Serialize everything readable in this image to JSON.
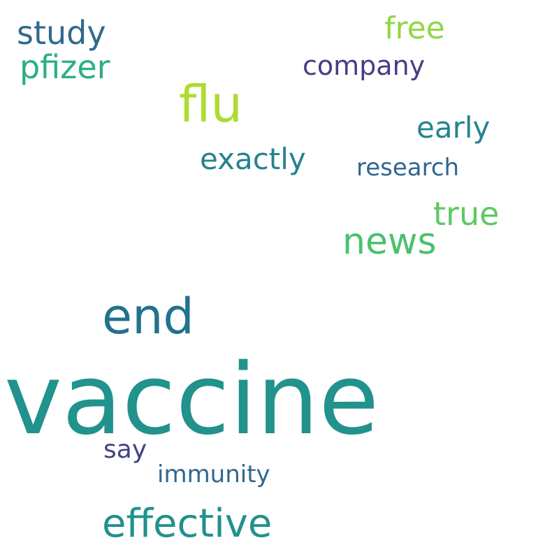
{
  "words": [
    {
      "id": "vaccine",
      "text": "vaccine",
      "color": "#21928c"
    },
    {
      "id": "end",
      "text": "end",
      "color": "#23718e"
    },
    {
      "id": "flu",
      "text": "flu",
      "color": "#addc30"
    },
    {
      "id": "effective",
      "text": "effective",
      "color": "#21918c"
    },
    {
      "id": "news",
      "text": "news",
      "color": "#4ac16d"
    },
    {
      "id": "study",
      "text": "study",
      "color": "#30698e"
    },
    {
      "id": "pfizer",
      "text": "pfizer",
      "color": "#2ab07f"
    },
    {
      "id": "free",
      "text": "free",
      "color": "#8fd744"
    },
    {
      "id": "true",
      "text": "true",
      "color": "#5ec962"
    },
    {
      "id": "early",
      "text": "early",
      "color": "#25848e"
    },
    {
      "id": "exactly",
      "text": "exactly",
      "color": "#26828e"
    },
    {
      "id": "company",
      "text": "company",
      "color": "#433e85"
    },
    {
      "id": "research",
      "text": "research",
      "color": "#31668e"
    },
    {
      "id": "say",
      "text": "say",
      "color": "#424086"
    },
    {
      "id": "immunity",
      "text": "immunity",
      "color": "#31688e"
    }
  ]
}
